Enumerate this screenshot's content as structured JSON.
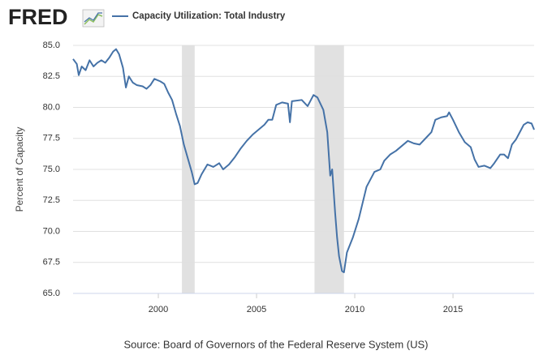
{
  "logo": "FRED",
  "chart_data": {
    "type": "line",
    "y_label": "Percent of Capacity",
    "source": "Source: Board of Governors of the Federal Reserve System (US)",
    "xlim": [
      1995.66,
      2019.13
    ],
    "xticks": [
      2000,
      2005,
      2010,
      2015
    ],
    "ylim": [
      65,
      85
    ],
    "yticks": [
      {
        "value": 65,
        "label": "65.0"
      },
      {
        "value": 67.5,
        "label": "67.5"
      },
      {
        "value": 70,
        "label": "70.0"
      },
      {
        "value": 72.5,
        "label": "72.5"
      },
      {
        "value": 75,
        "label": "75.0"
      },
      {
        "value": 77.5,
        "label": "77.5"
      },
      {
        "value": 80,
        "label": "80.0"
      },
      {
        "value": 82.5,
        "label": "82.5"
      },
      {
        "value": 85,
        "label": "85.0"
      }
    ],
    "grid": true,
    "recessions": [
      [
        2001.2,
        2001.85
      ],
      [
        2007.95,
        2009.45
      ]
    ],
    "recession_color": "#e1e1e1",
    "x": [
      1995.66,
      1995.85,
      1995.95,
      1996.1,
      1996.3,
      1996.5,
      1996.7,
      1996.9,
      1997.1,
      1997.3,
      1997.5,
      1997.7,
      1997.85,
      1998.0,
      1998.2,
      1998.35,
      1998.5,
      1998.7,
      1998.9,
      1999.2,
      1999.4,
      1999.6,
      1999.8,
      2000.1,
      2000.3,
      2000.5,
      2000.7,
      2000.9,
      2001.1,
      2001.3,
      2001.5,
      2001.7,
      2001.85,
      2002.0,
      2002.2,
      2002.5,
      2002.8,
      2003.1,
      2003.3,
      2003.6,
      2003.9,
      2004.2,
      2004.5,
      2004.8,
      2005.1,
      2005.4,
      2005.6,
      2005.8,
      2006.0,
      2006.3,
      2006.6,
      2006.7,
      2006.8,
      2007.3,
      2007.6,
      2007.9,
      2008.1,
      2008.4,
      2008.6,
      2008.75,
      2008.85,
      2009.0,
      2009.1,
      2009.2,
      2009.35,
      2009.45,
      2009.6,
      2009.9,
      2010.2,
      2010.4,
      2010.6,
      2011.0,
      2011.3,
      2011.5,
      2011.8,
      2012.1,
      2012.4,
      2012.7,
      2013.0,
      2013.3,
      2013.6,
      2013.9,
      2014.1,
      2014.4,
      2014.7,
      2014.8,
      2015.0,
      2015.3,
      2015.6,
      2015.9,
      2016.1,
      2016.3,
      2016.6,
      2016.9,
      2017.1,
      2017.4,
      2017.6,
      2017.8,
      2018.0,
      2018.2,
      2018.4,
      2018.6,
      2018.8,
      2019.0,
      2019.13
    ],
    "series": [
      {
        "name": "Capacity Utilization: Total Industry",
        "color": "#4572a7",
        "values": [
          83.9,
          83.5,
          82.6,
          83.3,
          83.0,
          83.8,
          83.3,
          83.6,
          83.8,
          83.6,
          84.0,
          84.5,
          84.7,
          84.3,
          83.2,
          81.6,
          82.5,
          82.0,
          81.8,
          81.7,
          81.5,
          81.8,
          82.3,
          82.1,
          81.9,
          81.2,
          80.6,
          79.5,
          78.5,
          77.0,
          75.9,
          74.8,
          73.8,
          73.9,
          74.6,
          75.4,
          75.2,
          75.5,
          75.0,
          75.4,
          76.0,
          76.7,
          77.3,
          77.8,
          78.2,
          78.6,
          79.0,
          79.0,
          80.2,
          80.4,
          80.3,
          78.8,
          80.5,
          80.6,
          80.1,
          81.0,
          80.8,
          79.8,
          78.0,
          74.5,
          75.0,
          71.5,
          69.5,
          68.0,
          66.8,
          66.7,
          68.3,
          69.5,
          71.0,
          72.3,
          73.6,
          74.8,
          75.0,
          75.7,
          76.2,
          76.5,
          76.9,
          77.3,
          77.1,
          77.0,
          77.5,
          78.0,
          79.0,
          79.2,
          79.3,
          79.6,
          79.0,
          78.0,
          77.2,
          76.8,
          75.8,
          75.2,
          75.3,
          75.1,
          75.5,
          76.2,
          76.2,
          75.9,
          77.0,
          77.4,
          78.0,
          78.6,
          78.8,
          78.7,
          78.2
        ]
      }
    ]
  }
}
